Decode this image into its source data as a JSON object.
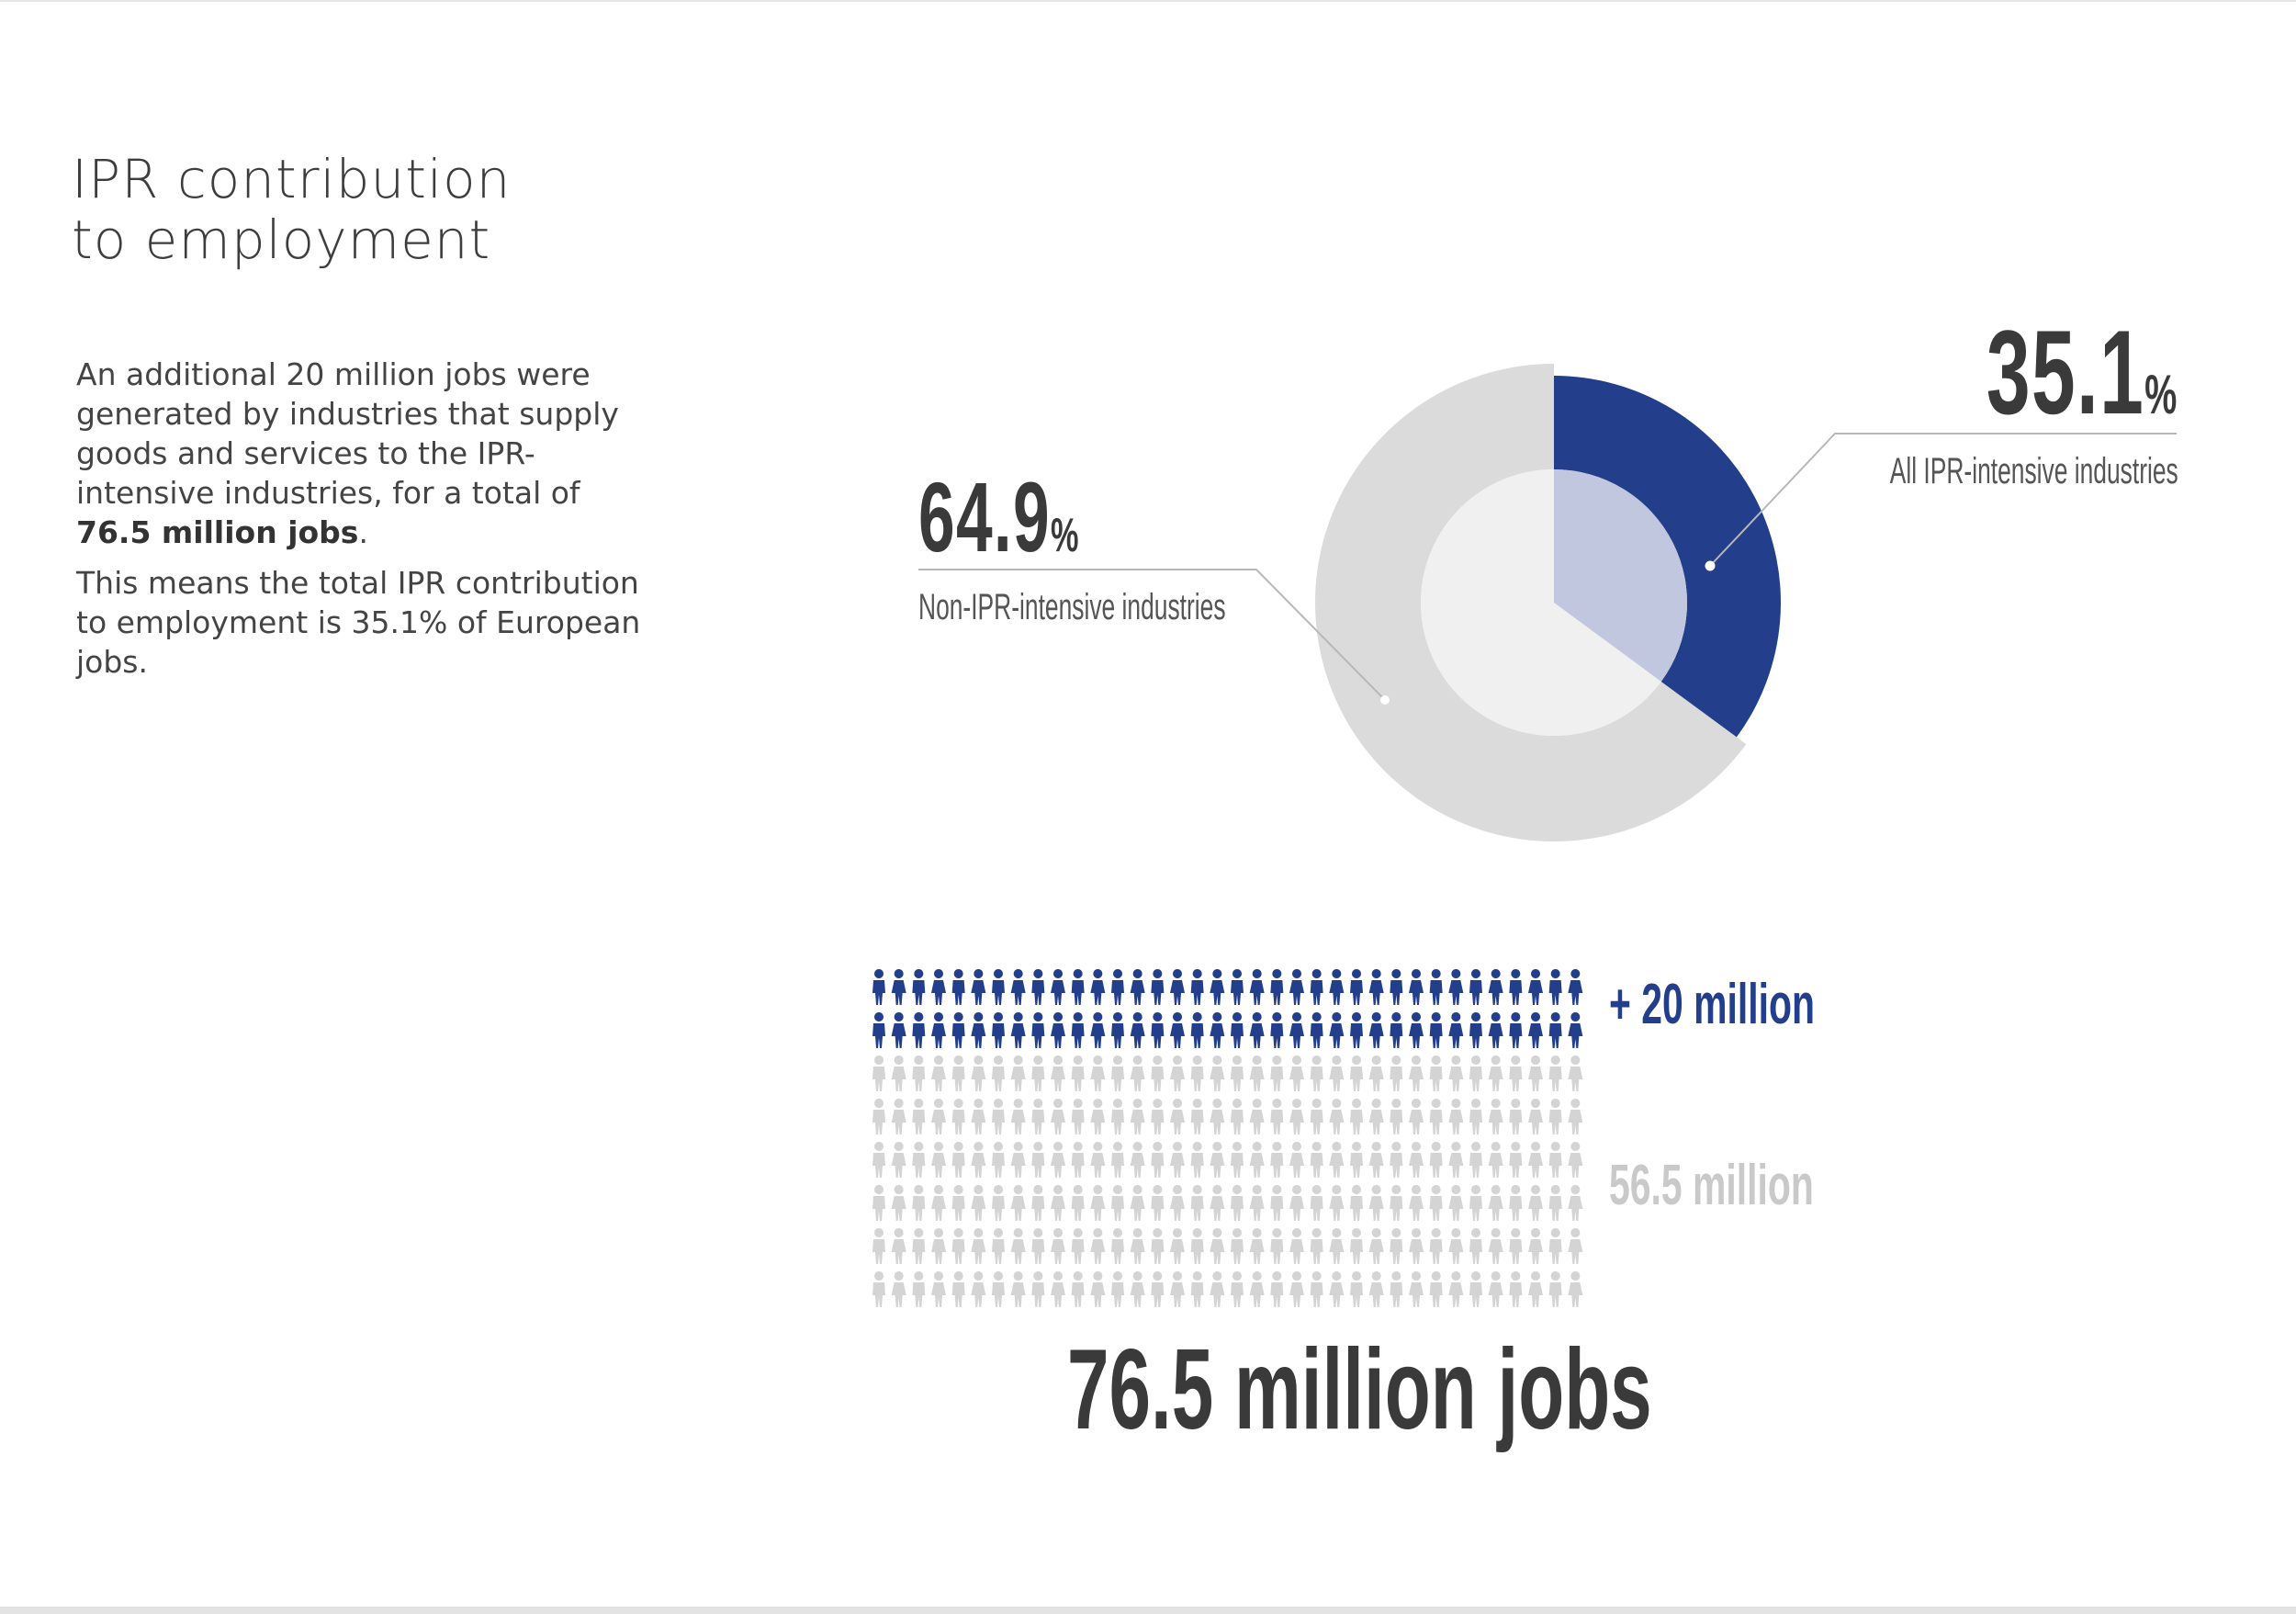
{
  "page": {
    "title_line1": "IPR contribution",
    "title_line2": "to employment",
    "intro": {
      "p1_text": "An additional 20 million jobs were generated by industries that supply goods and services to the IPR-intensive industries, for a total of ",
      "p1_bold": "76.5 million jobs",
      "p1_end": ".",
      "p2": "This means the total IPR contribution to employment is 35.1% of European jobs."
    }
  },
  "colors": {
    "ipr": "#233f8c",
    "ipr_inner": "#c0c7de",
    "non_ipr": "#dbdbdb",
    "non_ipr_inner": "#f0f0f0",
    "leader": "#b8b8b8",
    "people_blue": "#233f8c",
    "people_grey": "#d4d4d4"
  },
  "chart_data": [
    {
      "type": "pie",
      "labels": [
        "All IPR-intensive industries",
        "Non-IPR-intensive industries"
      ],
      "values": [
        35.1,
        64.9
      ],
      "value_labels": [
        {
          "number": "35.1",
          "unit": "%"
        },
        {
          "number": "64.9",
          "unit": "%"
        }
      ]
    },
    {
      "type": "bar",
      "categories": [
        "+ 20 million",
        "56.5 million"
      ],
      "values": [
        20,
        56.5
      ],
      "total_label": "76.5 million jobs",
      "rows_by_category": [
        2,
        6
      ],
      "icons_per_row": 36
    }
  ]
}
